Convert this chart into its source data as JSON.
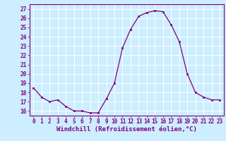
{
  "x": [
    0,
    1,
    2,
    3,
    4,
    5,
    6,
    7,
    8,
    9,
    10,
    11,
    12,
    13,
    14,
    15,
    16,
    17,
    18,
    19,
    20,
    21,
    22,
    23
  ],
  "y": [
    18.5,
    17.5,
    17.0,
    17.2,
    16.5,
    16.0,
    16.0,
    15.8,
    15.8,
    17.3,
    19.0,
    22.8,
    24.8,
    26.2,
    26.6,
    26.8,
    26.7,
    25.3,
    23.5,
    20.0,
    18.0,
    17.5,
    17.2,
    17.2
  ],
  "xlabel": "Windchill (Refroidissement éolien,°C)",
  "xlim": [
    -0.5,
    23.5
  ],
  "ylim": [
    15.5,
    27.5
  ],
  "yticks": [
    16,
    17,
    18,
    19,
    20,
    21,
    22,
    23,
    24,
    25,
    26,
    27
  ],
  "xticks": [
    0,
    1,
    2,
    3,
    4,
    5,
    6,
    7,
    8,
    9,
    10,
    11,
    12,
    13,
    14,
    15,
    16,
    17,
    18,
    19,
    20,
    21,
    22,
    23
  ],
  "line_color": "#800080",
  "marker": "s",
  "marker_size": 2.0,
  "bg_color": "#cceeff",
  "grid_color": "#ffffff",
  "tick_color": "#800080",
  "label_color": "#800080",
  "xlabel_fontsize": 6.5,
  "tick_fontsize": 5.5,
  "spine_color": "#800080"
}
